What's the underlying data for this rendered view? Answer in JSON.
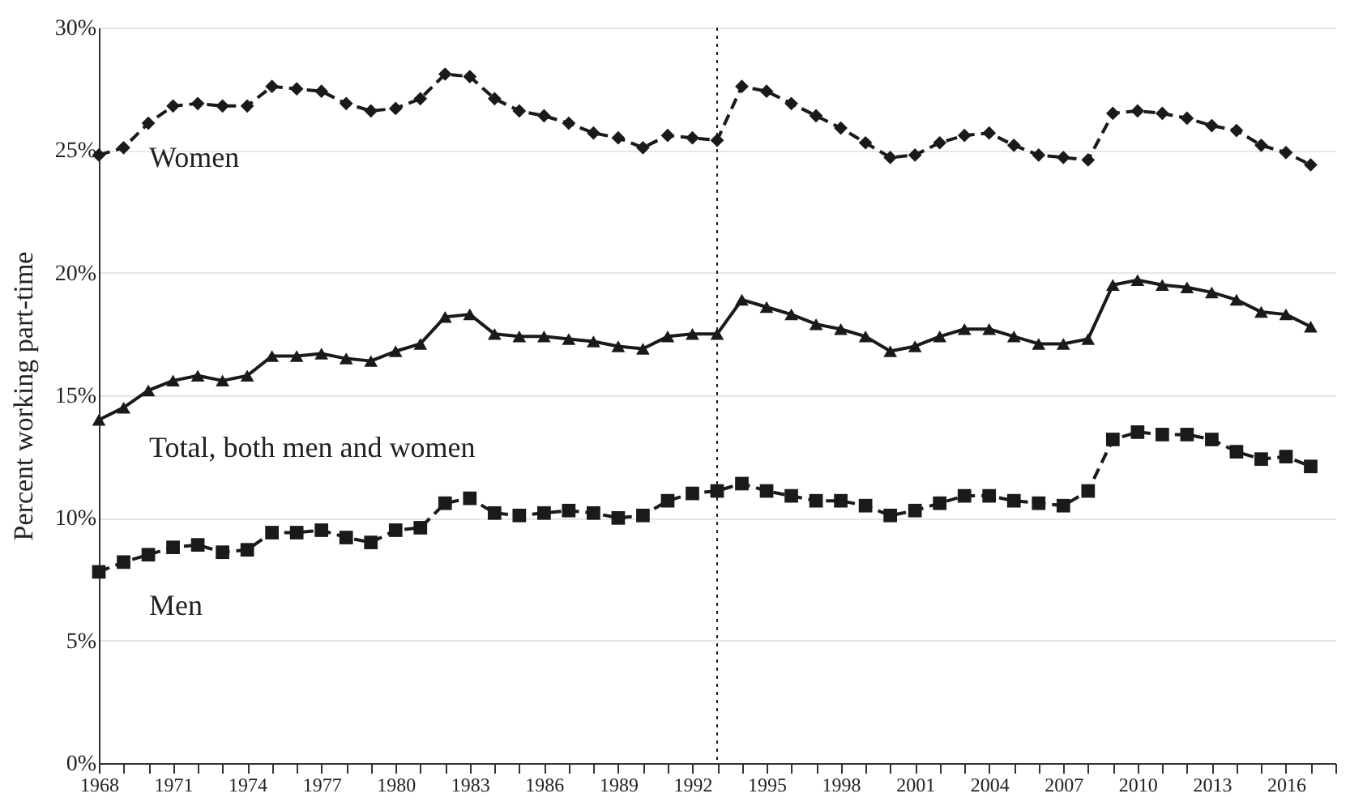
{
  "chart_data": {
    "type": "line",
    "ylabel": "Percent working part-time",
    "x": [
      1968,
      1969,
      1970,
      1971,
      1972,
      1973,
      1974,
      1975,
      1976,
      1977,
      1978,
      1979,
      1980,
      1981,
      1982,
      1983,
      1984,
      1985,
      1986,
      1987,
      1988,
      1989,
      1990,
      1991,
      1992,
      1993,
      1994,
      1995,
      1996,
      1997,
      1998,
      1999,
      2000,
      2001,
      2002,
      2003,
      2004,
      2005,
      2006,
      2007,
      2008,
      2009,
      2010,
      2011,
      2012,
      2013,
      2014,
      2015,
      2016,
      2017
    ],
    "series": [
      {
        "name": "Women",
        "color": "#1a1a1a",
        "marker": "diamond",
        "line_style": "dashed",
        "values": [
          24.8,
          25.1,
          26.1,
          26.8,
          26.9,
          26.8,
          26.8,
          27.6,
          27.5,
          27.4,
          26.9,
          26.6,
          26.7,
          27.1,
          28.1,
          28.0,
          27.1,
          26.6,
          26.4,
          26.1,
          25.7,
          25.5,
          25.1,
          25.6,
          25.5,
          25.4,
          27.6,
          27.4,
          26.9,
          26.4,
          25.9,
          25.3,
          24.7,
          24.8,
          25.3,
          25.6,
          25.7,
          25.2,
          24.8,
          24.7,
          24.6,
          26.5,
          26.6,
          26.5,
          26.3,
          26.0,
          25.8,
          25.2,
          24.9,
          24.4
        ]
      },
      {
        "name": "Total, both men and women",
        "color": "#1a1a1a",
        "marker": "triangle",
        "line_style": "solid",
        "values": [
          14.0,
          14.5,
          15.2,
          15.6,
          15.8,
          15.6,
          15.8,
          16.6,
          16.6,
          16.7,
          16.5,
          16.4,
          16.8,
          17.1,
          18.2,
          18.3,
          17.5,
          17.4,
          17.4,
          17.3,
          17.2,
          17.0,
          16.9,
          17.4,
          17.5,
          17.5,
          18.9,
          18.6,
          18.3,
          17.9,
          17.7,
          17.4,
          16.8,
          17.0,
          17.4,
          17.7,
          17.7,
          17.4,
          17.1,
          17.1,
          17.3,
          19.5,
          19.7,
          19.5,
          19.4,
          19.2,
          18.9,
          18.4,
          18.3,
          17.8
        ]
      },
      {
        "name": "Men",
        "color": "#1a1a1a",
        "marker": "square",
        "line_style": "dashed",
        "values": [
          7.8,
          8.2,
          8.5,
          8.8,
          8.9,
          8.6,
          8.7,
          9.4,
          9.4,
          9.5,
          9.2,
          9.0,
          9.5,
          9.6,
          10.6,
          10.8,
          10.2,
          10.1,
          10.2,
          10.3,
          10.2,
          10.0,
          10.1,
          10.7,
          11.0,
          11.1,
          11.4,
          11.1,
          10.9,
          10.7,
          10.7,
          10.5,
          10.1,
          10.3,
          10.6,
          10.9,
          10.9,
          10.7,
          10.6,
          10.5,
          11.1,
          13.2,
          13.5,
          13.4,
          13.4,
          13.2,
          12.7,
          12.4,
          12.5,
          12.1
        ]
      }
    ],
    "xlim": [
      1968,
      2018
    ],
    "xticks": [
      1968,
      {
        "value": 1969,
        "label": null
      },
      {
        "value": 1970,
        "label": null
      },
      1971,
      {
        "value": 1972,
        "label": null
      },
      {
        "value": 1973,
        "label": null
      },
      1974,
      {
        "value": 1975,
        "label": null
      },
      {
        "value": 1976,
        "label": null
      },
      1977,
      {
        "value": 1978,
        "label": null
      },
      {
        "value": 1979,
        "label": null
      },
      1980,
      {
        "value": 1981,
        "label": null
      },
      {
        "value": 1982,
        "label": null
      },
      1983,
      {
        "value": 1984,
        "label": null
      },
      {
        "value": 1985,
        "label": null
      },
      1986,
      {
        "value": 1987,
        "label": null
      },
      {
        "value": 1988,
        "label": null
      },
      1989,
      {
        "value": 1990,
        "label": null
      },
      {
        "value": 1991,
        "label": null
      },
      1992,
      {
        "value": 1993,
        "label": null
      },
      {
        "value": 1994,
        "label": null
      },
      1995,
      {
        "value": 1996,
        "label": null
      },
      {
        "value": 1997,
        "label": null
      },
      1998,
      {
        "value": 1999,
        "label": null
      },
      {
        "value": 2000,
        "label": null
      },
      2001,
      {
        "value": 2002,
        "label": null
      },
      {
        "value": 2003,
        "label": null
      },
      2004,
      {
        "value": 2005,
        "label": null
      },
      {
        "value": 2006,
        "label": null
      },
      2007,
      {
        "value": 2008,
        "label": null
      },
      {
        "value": 2009,
        "label": null
      },
      2010,
      {
        "value": 2011,
        "label": null
      },
      {
        "value": 2012,
        "label": null
      },
      2013,
      {
        "value": 2014,
        "label": null
      },
      {
        "value": 2015,
        "label": null
      },
      2016,
      {
        "value": 2017,
        "label": null
      },
      {
        "value": 2018,
        "label": null
      }
    ],
    "ylim": [
      0,
      30
    ],
    "yticks": [
      {
        "value": 0,
        "label": "0%"
      },
      {
        "value": 5,
        "label": "5%"
      },
      {
        "value": 10,
        "label": "10%"
      },
      {
        "value": 15,
        "label": "15%"
      },
      {
        "value": 20,
        "label": "20%"
      },
      {
        "value": 25,
        "label": "25%"
      },
      {
        "value": 30,
        "label": "30%"
      }
    ],
    "grid": "y",
    "ref_lines": [
      {
        "axis": "x",
        "value": 1993,
        "line_style": "dotted",
        "color": "#1a1a1a"
      }
    ]
  }
}
